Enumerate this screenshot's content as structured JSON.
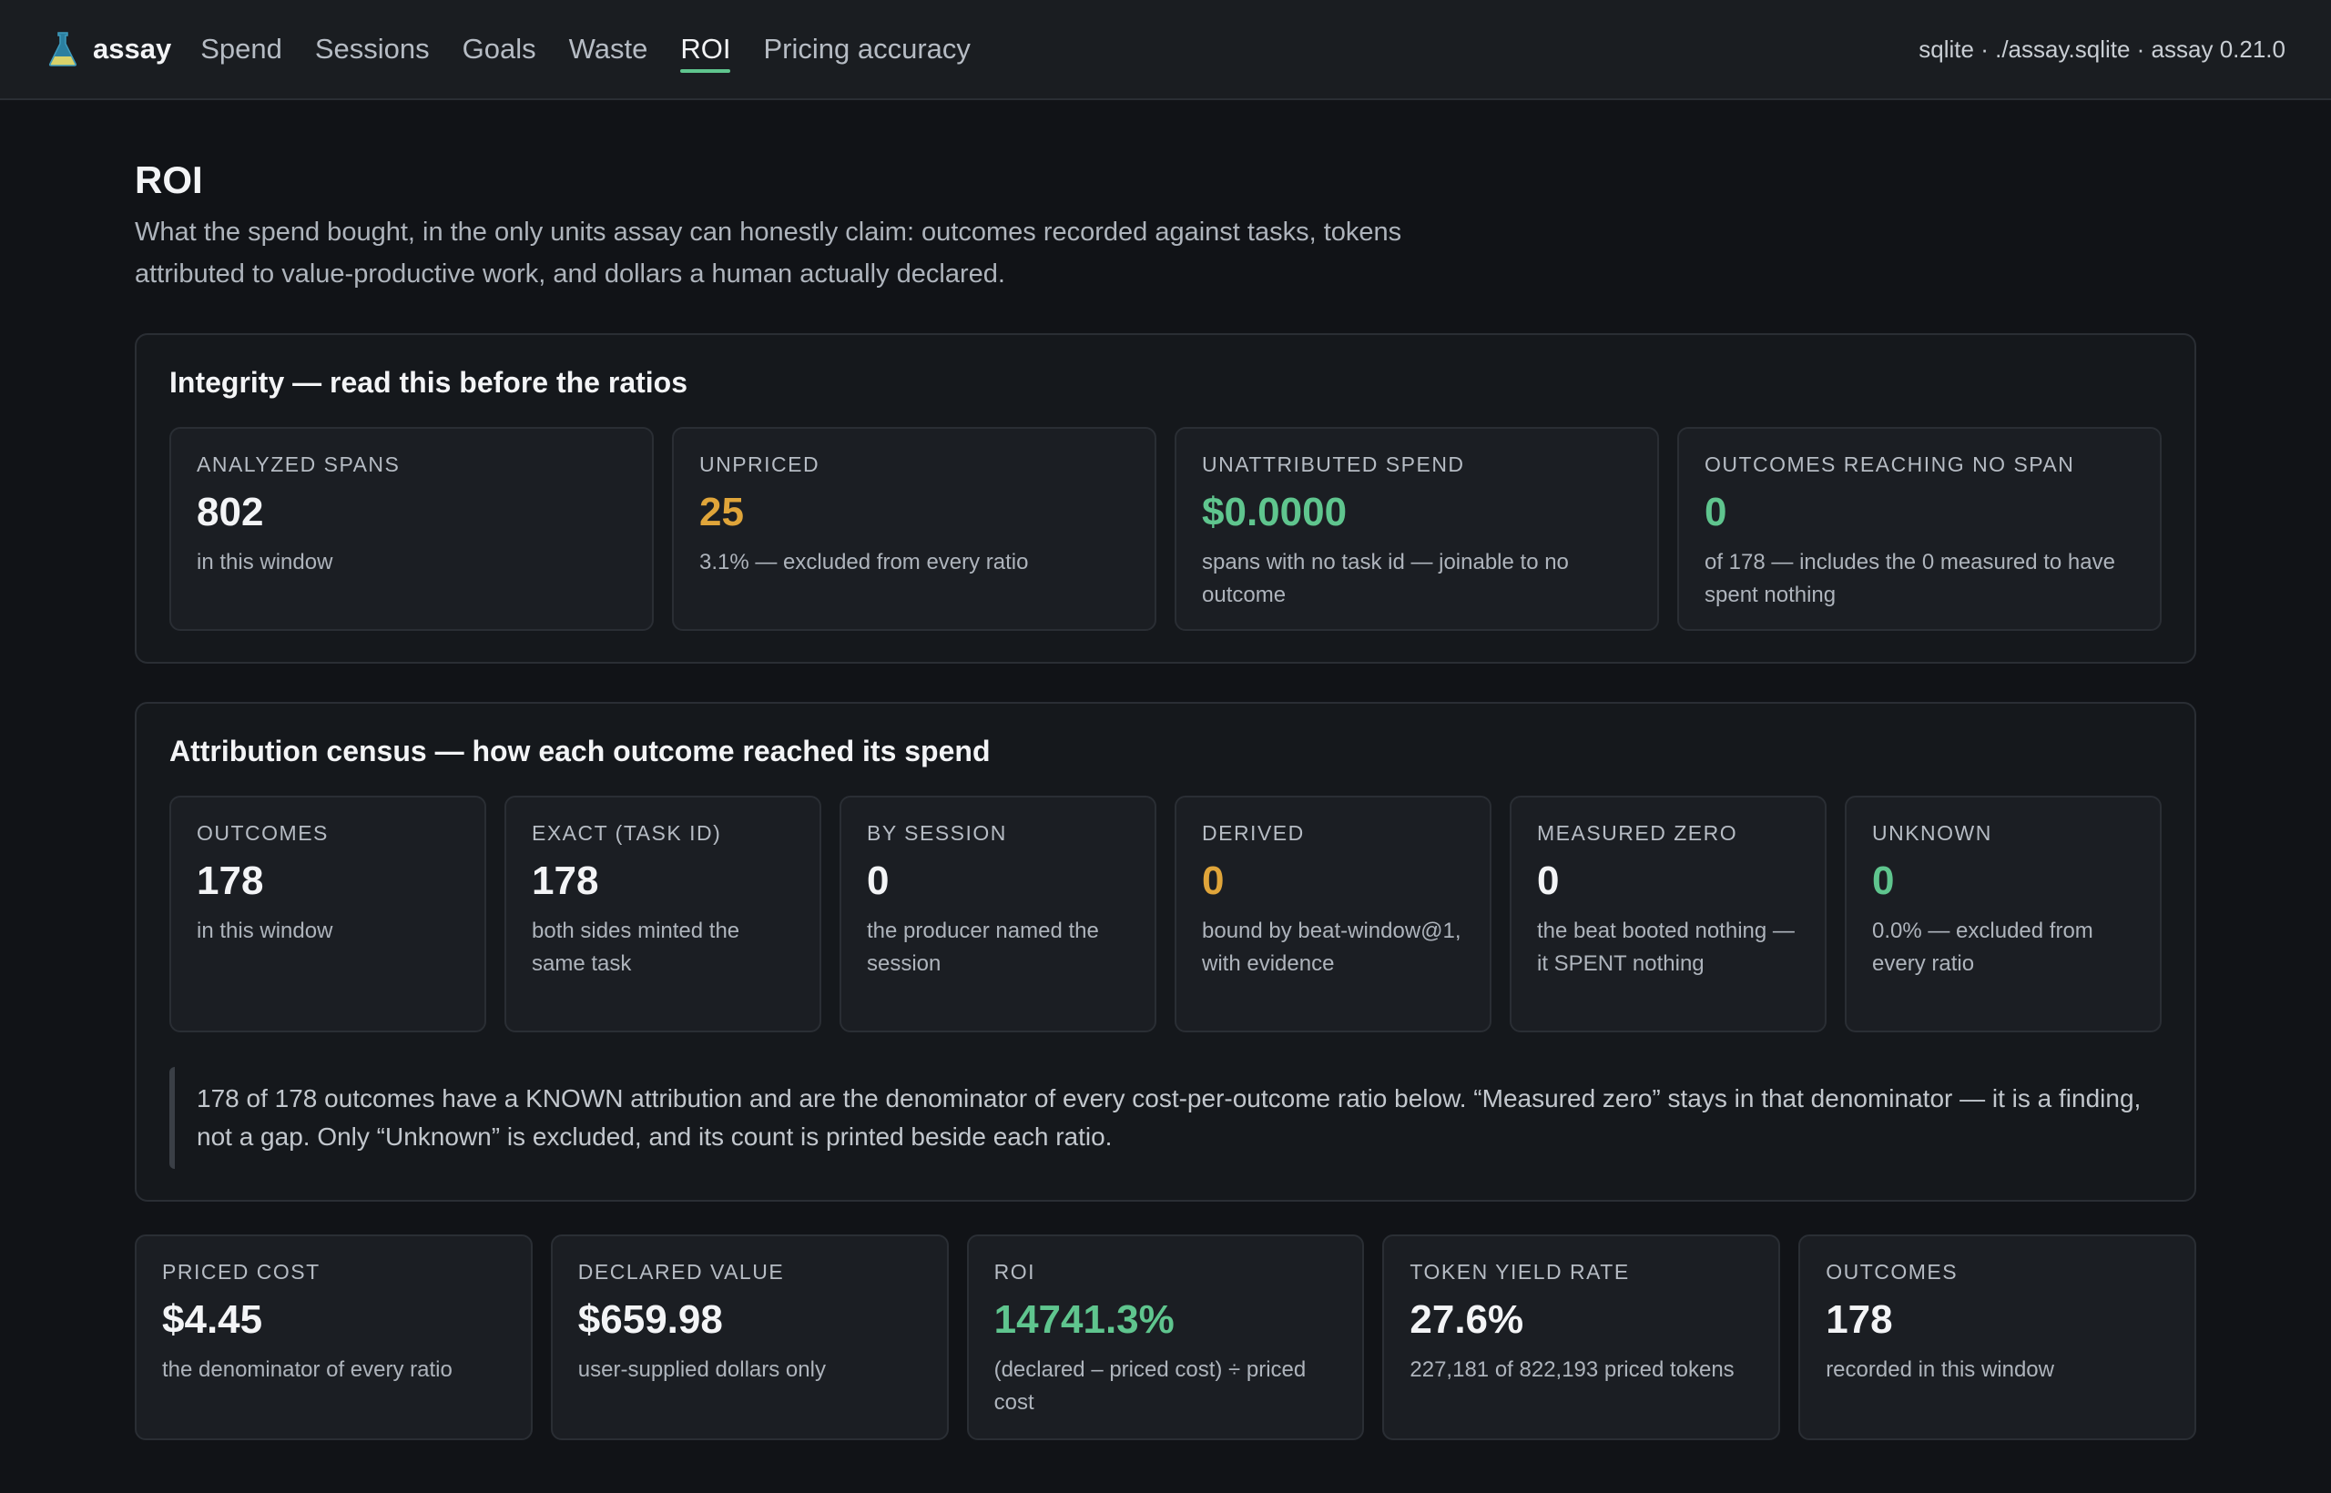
{
  "app": {
    "name": "assay",
    "db_info": "sqlite · ./assay.sqlite · assay 0.21.0"
  },
  "nav": [
    {
      "label": "Spend",
      "active": false
    },
    {
      "label": "Sessions",
      "active": false
    },
    {
      "label": "Goals",
      "active": false
    },
    {
      "label": "Waste",
      "active": false
    },
    {
      "label": "ROI",
      "active": true
    },
    {
      "label": "Pricing accuracy",
      "active": false
    }
  ],
  "page": {
    "title": "ROI",
    "subtitle": "What the spend bought, in the only units assay can honestly claim: outcomes recorded against tasks, tokens attributed to value-productive work, and dollars a human actually declared."
  },
  "integrity": {
    "title": "Integrity — read this before the ratios",
    "cards": [
      {
        "label": "ANALYZED SPANS",
        "value": "802",
        "note": "in this window"
      },
      {
        "label": "UNPRICED",
        "value": "25",
        "note": "3.1% — excluded from every ratio"
      },
      {
        "label": "UNATTRIBUTED SPEND",
        "value": "$0.0000",
        "note": "spans with no task id — joinable to no outcome"
      },
      {
        "label": "OUTCOMES REACHING NO SPAN",
        "value": "0",
        "note": "of 178 — includes the 0 measured to have spent nothing"
      }
    ]
  },
  "census": {
    "title": "Attribution census — how each outcome reached its spend",
    "cards": [
      {
        "label": "OUTCOMES",
        "value": "178",
        "note": "in this window"
      },
      {
        "label": "EXACT (TASK ID)",
        "value": "178",
        "note": "both sides minted the same task"
      },
      {
        "label": "BY SESSION",
        "value": "0",
        "note": "the producer named the session"
      },
      {
        "label": "DERIVED",
        "value": "0",
        "note": "bound by beat-window@1, with evidence"
      },
      {
        "label": "MEASURED ZERO",
        "value": "0",
        "note": "the beat booted nothing — it SPENT nothing"
      },
      {
        "label": "UNKNOWN",
        "value": "0",
        "note": "0.0% — excluded from every ratio"
      }
    ],
    "callout": "178 of 178 outcomes have a KNOWN attribution and are the denominator of every cost-per-outcome ratio below. “Measured zero” stays in that denominator — it is a finding, not a gap. Only “Unknown” is excluded, and its count is printed beside each ratio."
  },
  "summary": [
    {
      "label": "PRICED COST",
      "value": "$4.45",
      "note": "the denominator of every ratio"
    },
    {
      "label": "DECLARED VALUE",
      "value": "$659.98",
      "note": "user-supplied dollars only"
    },
    {
      "label": "ROI",
      "value": "14741.3%",
      "note": "(declared – priced cost) ÷ priced cost"
    },
    {
      "label": "TOKEN YIELD RATE",
      "value": "27.6%",
      "note": "227,181 of 822,193 priced tokens"
    },
    {
      "label": "OUTCOMES",
      "value": "178",
      "note": "recorded in this window"
    }
  ],
  "colors": {
    "accent": "#5fc58e",
    "warning": "#e0a53a",
    "background": "#111317"
  }
}
